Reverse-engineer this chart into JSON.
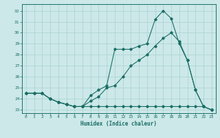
{
  "xlabel": "Humidex (Indice chaleur)",
  "xlim": [
    -0.5,
    23.5
  ],
  "ylim": [
    22.7,
    32.6
  ],
  "yticks": [
    23,
    24,
    25,
    26,
    27,
    28,
    29,
    30,
    31,
    32
  ],
  "xticks": [
    0,
    1,
    2,
    3,
    4,
    5,
    6,
    7,
    8,
    9,
    10,
    11,
    12,
    13,
    14,
    15,
    16,
    17,
    18,
    19,
    20,
    21,
    22,
    23
  ],
  "bg_color": "#cce8e8",
  "grid_color": "#aad0d0",
  "line_color": "#1a6e66",
  "line1_y": [
    24.5,
    24.5,
    24.5,
    24.0,
    23.7,
    23.5,
    23.3,
    23.3,
    23.3,
    23.3,
    23.3,
    23.3,
    23.3,
    23.3,
    23.3,
    23.3,
    23.3,
    23.3,
    23.3,
    23.3,
    23.3,
    23.3,
    23.3,
    23.0
  ],
  "line2_y": [
    24.5,
    24.5,
    24.5,
    24.0,
    23.7,
    23.5,
    23.3,
    23.3,
    24.3,
    24.8,
    25.2,
    28.5,
    28.5,
    28.5,
    28.8,
    29.0,
    31.2,
    32.0,
    31.3,
    29.0,
    27.5,
    24.8,
    23.3,
    23.0
  ],
  "line3_y": [
    24.5,
    24.5,
    24.5,
    24.0,
    23.7,
    23.5,
    23.3,
    23.3,
    23.8,
    24.2,
    25.0,
    25.2,
    26.0,
    27.0,
    27.5,
    28.0,
    28.8,
    29.5,
    30.0,
    29.2,
    27.5,
    24.8,
    23.3,
    23.0
  ]
}
